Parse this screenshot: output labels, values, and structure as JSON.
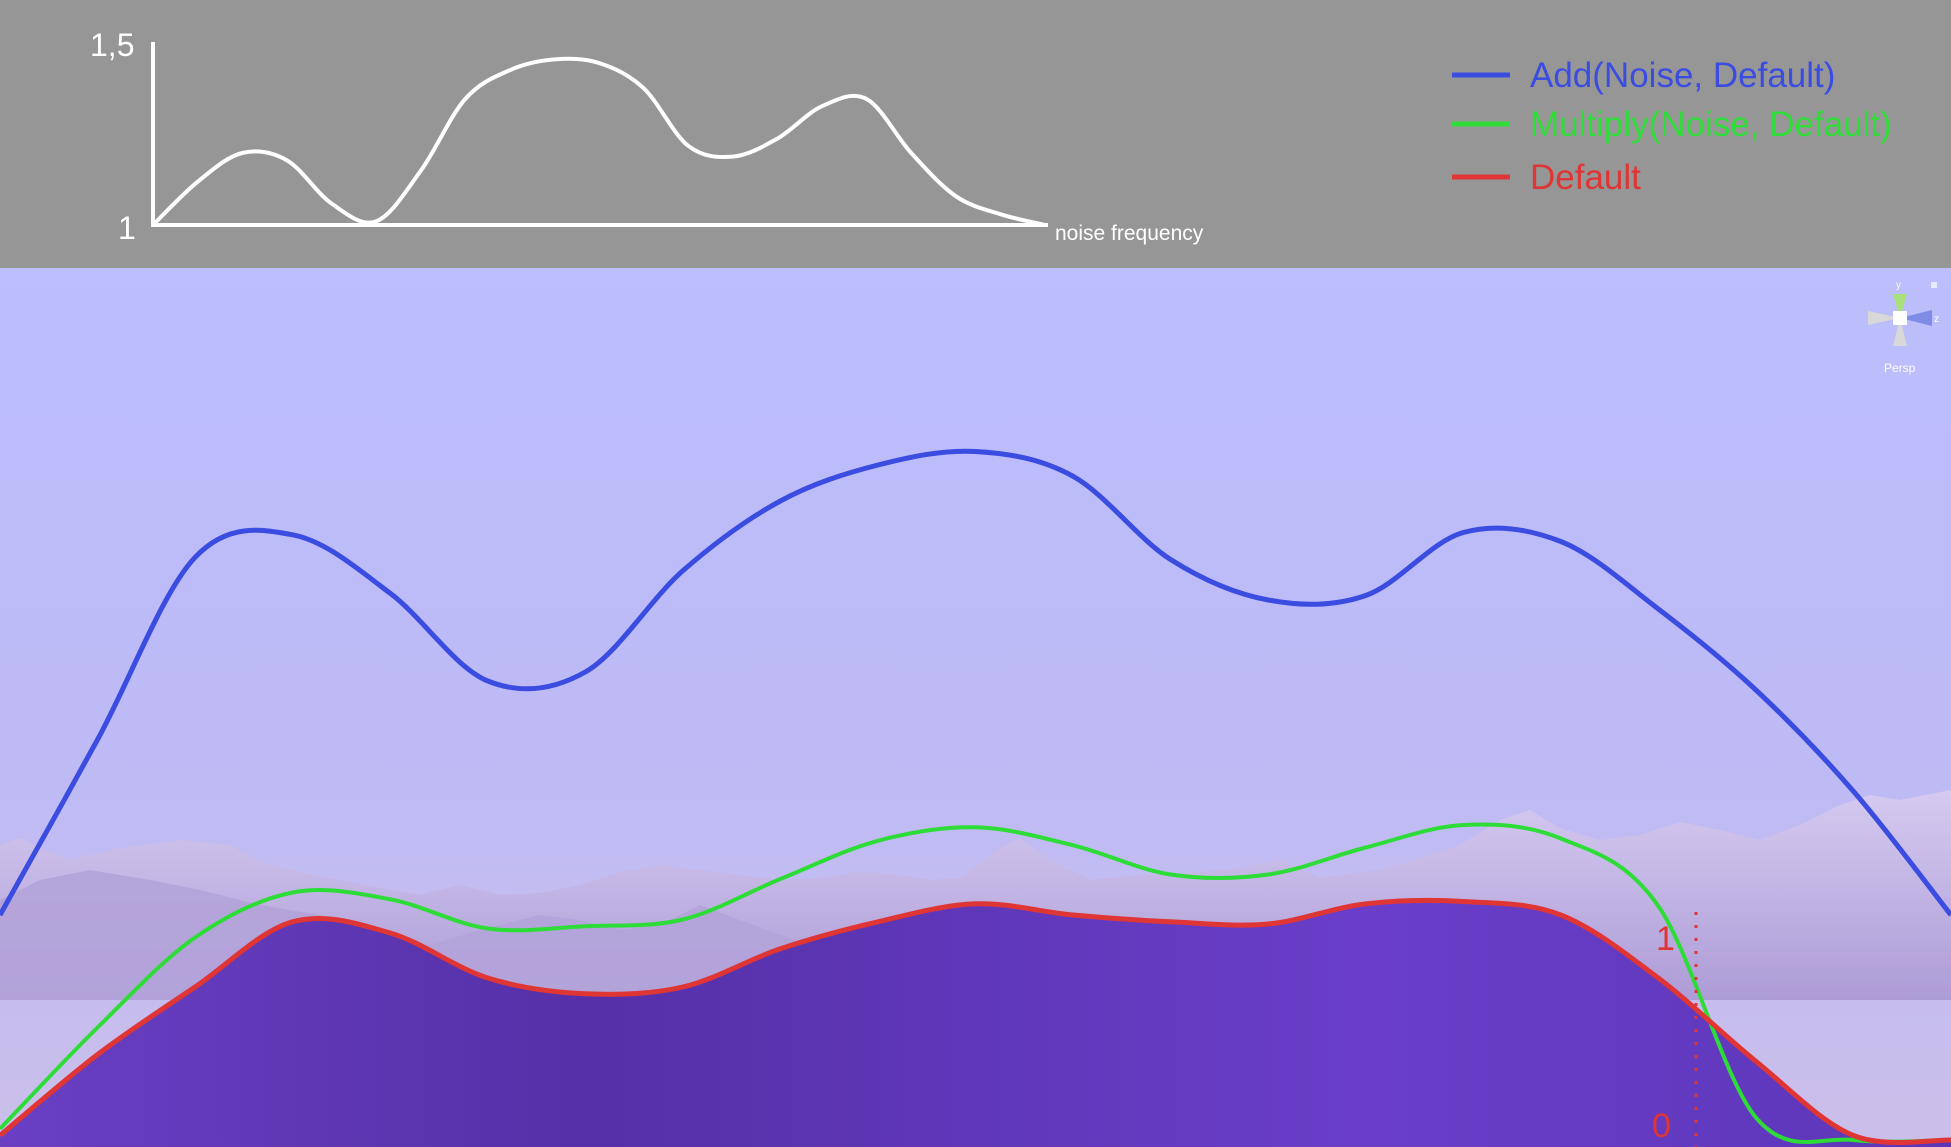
{
  "chart_data": [
    {
      "type": "line",
      "id": "noise-graph",
      "xlabel": "noise frequency",
      "ylabel": "",
      "ylim": [
        1,
        1.5
      ],
      "y_tick_labels": [
        "1,5",
        "1"
      ],
      "x": [
        0,
        5,
        10,
        15,
        20,
        25,
        30,
        35,
        40,
        45,
        50,
        55,
        60,
        65,
        70,
        75,
        80,
        85,
        90,
        95,
        100
      ],
      "values": [
        1.0,
        1.12,
        1.2,
        1.18,
        1.06,
        1.01,
        1.15,
        1.35,
        1.43,
        1.46,
        1.45,
        1.38,
        1.22,
        1.19,
        1.24,
        1.33,
        1.35,
        1.2,
        1.08,
        1.03,
        1.0
      ]
    },
    {
      "type": "line",
      "id": "terrain-height",
      "title": "",
      "xlabel": "",
      "ylabel": "",
      "ylim": [
        0,
        3.2
      ],
      "y_tick_labels": [
        "1",
        "0"
      ],
      "legend_position": "top-right",
      "x": [
        0,
        5,
        10,
        15,
        20,
        25,
        30,
        35,
        40,
        45,
        50,
        55,
        60,
        65,
        70,
        75,
        80,
        85,
        90,
        95,
        100
      ],
      "series": [
        {
          "name": "Add(Noise, Default)",
          "color": "#3b4ce0",
          "values": [
            1.0,
            1.78,
            2.59,
            2.69,
            2.43,
            2.04,
            2.08,
            2.53,
            2.84,
            3.0,
            3.06,
            2.95,
            2.58,
            2.4,
            2.42,
            2.7,
            2.66,
            2.36,
            2.0,
            1.55,
            1.0
          ]
        },
        {
          "name": "Multiply(Noise, Default)",
          "color": "#2edc37",
          "values": [
            0.05,
            0.5,
            0.9,
            1.1,
            1.07,
            0.94,
            0.95,
            0.98,
            1.16,
            1.33,
            1.39,
            1.31,
            1.18,
            1.18,
            1.3,
            1.4,
            1.34,
            1.04,
            0.1,
            0.0,
            0.0
          ]
        },
        {
          "name": "Default",
          "color": "#e03535",
          "values": [
            0.02,
            0.38,
            0.68,
            0.97,
            0.92,
            0.72,
            0.65,
            0.68,
            0.85,
            0.97,
            1.05,
            1.0,
            0.97,
            0.96,
            1.05,
            1.06,
            1.0,
            0.72,
            0.35,
            0.02,
            0.0
          ]
        }
      ]
    }
  ],
  "gizmo": {
    "axis_y": "y",
    "axis_z": "z",
    "mode": "Persp"
  },
  "colors": {
    "header_bg": "#969696",
    "sky_top": "#bcbefd",
    "sky_bottom": "#c9c0ec",
    "terrain": "#5b35b5"
  }
}
